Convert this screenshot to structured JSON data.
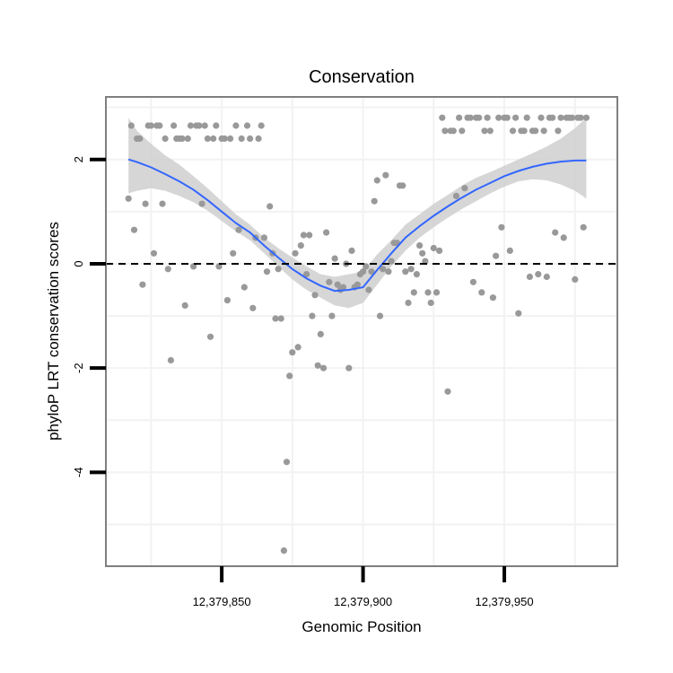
{
  "chart_data": {
    "type": "scatter",
    "title": "Conservation",
    "xlabel": "Genomic Position",
    "ylabel": "phyloP LRT conservation scores",
    "xlim": [
      12379809,
      12379990
    ],
    "ylim": [
      -5.8,
      3.2
    ],
    "x_ticks": [
      {
        "value": 12379850,
        "label": "12,379,850"
      },
      {
        "value": 12379900,
        "label": "12,379,900"
      },
      {
        "value": 12379950,
        "label": "12,379,950"
      }
    ],
    "y_ticks": [
      {
        "value": 2,
        "label": "2"
      },
      {
        "value": 0,
        "label": "0"
      },
      {
        "value": -2,
        "label": "-2"
      },
      {
        "value": -4,
        "label": "-4"
      }
    ],
    "x_minor_grid": [
      12379825,
      12379875,
      12379925,
      12379975
    ],
    "y_minor_grid": [
      3,
      1,
      -1,
      -3,
      -5
    ],
    "grid": true,
    "reference_line": {
      "y": 0,
      "style": "dashed"
    },
    "colors": {
      "points": "#999999",
      "smooth": "#3366ff",
      "ribbon": "#cccccc",
      "frame": "#7f7f7f",
      "grid": "#f2f2f2"
    },
    "points": [
      [
        12379817,
        1.25
      ],
      [
        12379818,
        2.65
      ],
      [
        12379819,
        0.65
      ],
      [
        12379820,
        2.4
      ],
      [
        12379821,
        2.4
      ],
      [
        12379822,
        -0.4
      ],
      [
        12379823,
        1.15
      ],
      [
        12379824,
        2.65
      ],
      [
        12379825,
        2.65
      ],
      [
        12379826,
        0.2
      ],
      [
        12379827,
        2.65
      ],
      [
        12379828,
        2.65
      ],
      [
        12379829,
        1.15
      ],
      [
        12379830,
        2.4
      ],
      [
        12379831,
        -0.1
      ],
      [
        12379832,
        -1.85
      ],
      [
        12379833,
        2.65
      ],
      [
        12379834,
        2.4
      ],
      [
        12379835,
        2.4
      ],
      [
        12379836,
        2.4
      ],
      [
        12379837,
        -0.8
      ],
      [
        12379838,
        2.4
      ],
      [
        12379839,
        2.65
      ],
      [
        12379840,
        -0.05
      ],
      [
        12379841,
        2.65
      ],
      [
        12379842,
        2.65
      ],
      [
        12379843,
        1.15
      ],
      [
        12379844,
        2.65
      ],
      [
        12379845,
        2.4
      ],
      [
        12379846,
        -1.4
      ],
      [
        12379847,
        2.4
      ],
      [
        12379848,
        2.65
      ],
      [
        12379849,
        -0.05
      ],
      [
        12379850,
        2.4
      ],
      [
        12379851,
        2.4
      ],
      [
        12379852,
        -0.7
      ],
      [
        12379853,
        2.4
      ],
      [
        12379854,
        0.2
      ],
      [
        12379855,
        2.65
      ],
      [
        12379856,
        0.65
      ],
      [
        12379857,
        2.4
      ],
      [
        12379858,
        -0.45
      ],
      [
        12379859,
        2.65
      ],
      [
        12379860,
        2.4
      ],
      [
        12379861,
        -0.85
      ],
      [
        12379862,
        0.5
      ],
      [
        12379863,
        2.4
      ],
      [
        12379864,
        2.65
      ],
      [
        12379865,
        0.5
      ],
      [
        12379866,
        -0.15
      ],
      [
        12379867,
        1.1
      ],
      [
        12379868,
        0.2
      ],
      [
        12379869,
        -1.05
      ],
      [
        12379870,
        -0.1
      ],
      [
        12379871,
        -1.05
      ],
      [
        12379872,
        -5.5
      ],
      [
        12379873,
        -3.8
      ],
      [
        12379874,
        -2.15
      ],
      [
        12379875,
        -1.7
      ],
      [
        12379876,
        0.2
      ],
      [
        12379877,
        -1.6
      ],
      [
        12379878,
        0.35
      ],
      [
        12379879,
        0.55
      ],
      [
        12379880,
        -0.2
      ],
      [
        12379881,
        0.55
      ],
      [
        12379882,
        -1.0
      ],
      [
        12379883,
        -0.6
      ],
      [
        12379884,
        -1.95
      ],
      [
        12379885,
        -1.35
      ],
      [
        12379886,
        -2.0
      ],
      [
        12379887,
        0.6
      ],
      [
        12379888,
        -0.35
      ],
      [
        12379889,
        -1.0
      ],
      [
        12379890,
        0.1
      ],
      [
        12379891,
        -0.4
      ],
      [
        12379892,
        -0.5
      ],
      [
        12379893,
        -0.45
      ],
      [
        12379894,
        0.0
      ],
      [
        12379895,
        -2.0
      ],
      [
        12379896,
        0.25
      ],
      [
        12379897,
        -0.45
      ],
      [
        12379898,
        -0.4
      ],
      [
        12379899,
        -0.2
      ],
      [
        12379900,
        -0.15
      ],
      [
        12379901,
        -0.05
      ],
      [
        12379902,
        -0.5
      ],
      [
        12379903,
        -0.15
      ],
      [
        12379904,
        1.2
      ],
      [
        12379905,
        1.6
      ],
      [
        12379906,
        -1.0
      ],
      [
        12379907,
        -0.1
      ],
      [
        12379908,
        1.7
      ],
      [
        12379909,
        -0.15
      ],
      [
        12379910,
        0.05
      ],
      [
        12379911,
        0.4
      ],
      [
        12379912,
        0.4
      ],
      [
        12379913,
        1.5
      ],
      [
        12379914,
        1.5
      ],
      [
        12379915,
        -0.15
      ],
      [
        12379916,
        -0.75
      ],
      [
        12379917,
        -0.1
      ],
      [
        12379918,
        -0.55
      ],
      [
        12379919,
        -0.2
      ],
      [
        12379920,
        0.35
      ],
      [
        12379921,
        0.2
      ],
      [
        12379922,
        0.05
      ],
      [
        12379923,
        -0.55
      ],
      [
        12379924,
        -0.75
      ],
      [
        12379925,
        0.3
      ],
      [
        12379926,
        -0.55
      ],
      [
        12379927,
        0.25
      ],
      [
        12379928,
        2.8
      ],
      [
        12379929,
        2.55
      ],
      [
        12379930,
        -2.45
      ],
      [
        12379931,
        2.55
      ],
      [
        12379932,
        2.55
      ],
      [
        12379933,
        1.3
      ],
      [
        12379934,
        2.8
      ],
      [
        12379935,
        2.55
      ],
      [
        12379936,
        1.45
      ],
      [
        12379937,
        2.8
      ],
      [
        12379938,
        2.8
      ],
      [
        12379939,
        -0.35
      ],
      [
        12379940,
        2.8
      ],
      [
        12379941,
        2.8
      ],
      [
        12379942,
        -0.55
      ],
      [
        12379943,
        2.55
      ],
      [
        12379944,
        2.8
      ],
      [
        12379945,
        2.55
      ],
      [
        12379946,
        -0.65
      ],
      [
        12379947,
        0.15
      ],
      [
        12379948,
        2.8
      ],
      [
        12379949,
        0.7
      ],
      [
        12379950,
        2.8
      ],
      [
        12379951,
        2.8
      ],
      [
        12379952,
        0.25
      ],
      [
        12379953,
        2.55
      ],
      [
        12379954,
        2.8
      ],
      [
        12379955,
        -0.95
      ],
      [
        12379956,
        2.55
      ],
      [
        12379957,
        2.55
      ],
      [
        12379958,
        2.8
      ],
      [
        12379959,
        -0.25
      ],
      [
        12379960,
        2.55
      ],
      [
        12379961,
        2.55
      ],
      [
        12379962,
        -0.2
      ],
      [
        12379963,
        2.8
      ],
      [
        12379964,
        2.55
      ],
      [
        12379965,
        -0.25
      ],
      [
        12379966,
        2.8
      ],
      [
        12379967,
        2.8
      ],
      [
        12379968,
        0.6
      ],
      [
        12379969,
        2.55
      ],
      [
        12379970,
        2.8
      ],
      [
        12379971,
        0.5
      ],
      [
        12379972,
        2.8
      ],
      [
        12379973,
        2.8
      ],
      [
        12379974,
        2.8
      ],
      [
        12379975,
        -0.3
      ],
      [
        12379976,
        2.8
      ],
      [
        12379977,
        2.8
      ],
      [
        12379978,
        0.7
      ],
      [
        12379979,
        2.8
      ]
    ],
    "smooth": {
      "x": [
        12379817,
        12379820,
        12379825,
        12379830,
        12379835,
        12379840,
        12379845,
        12379850,
        12379855,
        12379860,
        12379865,
        12379870,
        12379875,
        12379880,
        12379885,
        12379890,
        12379895,
        12379900,
        12379905,
        12379910,
        12379915,
        12379920,
        12379925,
        12379930,
        12379935,
        12379940,
        12379945,
        12379950,
        12379955,
        12379960,
        12379965,
        12379970,
        12379975,
        12379979
      ],
      "y": [
        2.0,
        1.95,
        1.85,
        1.72,
        1.58,
        1.42,
        1.22,
        1.0,
        0.78,
        0.6,
        0.35,
        0.12,
        -0.1,
        -0.28,
        -0.42,
        -0.52,
        -0.5,
        -0.45,
        -0.12,
        0.2,
        0.5,
        0.72,
        0.92,
        1.1,
        1.27,
        1.42,
        1.55,
        1.68,
        1.78,
        1.86,
        1.92,
        1.96,
        1.98,
        1.98
      ],
      "lower": [
        1.35,
        1.4,
        1.45,
        1.4,
        1.3,
        1.18,
        1.02,
        0.82,
        0.62,
        0.45,
        0.2,
        -0.05,
        -0.3,
        -0.5,
        -0.65,
        -0.8,
        -0.85,
        -0.75,
        -0.4,
        -0.05,
        0.25,
        0.5,
        0.7,
        0.88,
        1.05,
        1.2,
        1.35,
        1.48,
        1.58,
        1.62,
        1.6,
        1.52,
        1.4,
        1.25
      ],
      "upper": [
        2.8,
        2.55,
        2.3,
        2.08,
        1.9,
        1.68,
        1.45,
        1.2,
        0.95,
        0.75,
        0.5,
        0.3,
        0.12,
        -0.05,
        -0.2,
        -0.25,
        -0.2,
        -0.15,
        0.18,
        0.45,
        0.75,
        0.95,
        1.15,
        1.32,
        1.5,
        1.65,
        1.76,
        1.88,
        2.0,
        2.12,
        2.25,
        2.4,
        2.6,
        2.8
      ]
    }
  }
}
